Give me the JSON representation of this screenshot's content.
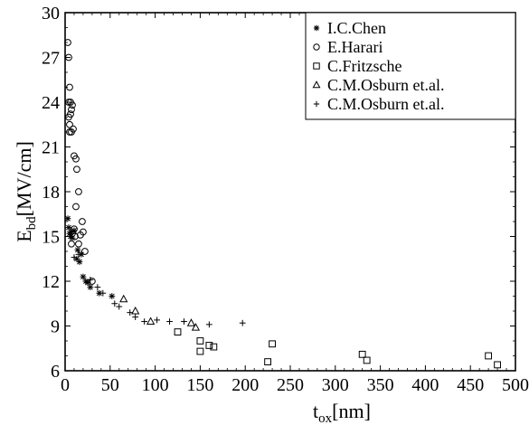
{
  "chart_data": {
    "type": "scatter",
    "title": "",
    "xlabel": {
      "main": "t",
      "sub": "ox",
      "unit": "[nm]"
    },
    "ylabel": {
      "main": "E",
      "sub": "bd",
      "unit": "[MV/cm]"
    },
    "xlim": [
      0,
      500
    ],
    "ylim": [
      6,
      30
    ],
    "xticks": [
      0,
      50,
      100,
      150,
      200,
      250,
      300,
      350,
      400,
      450,
      500
    ],
    "yticks": [
      6,
      9,
      12,
      15,
      18,
      21,
      24,
      27,
      30
    ],
    "grid": false,
    "legend_position": "top-right",
    "series": [
      {
        "name": "I.C.Chen",
        "marker": "asterisk",
        "x": [
          3,
          4,
          5,
          6,
          7,
          8,
          10,
          13,
          14,
          16,
          18,
          20,
          23,
          25,
          28,
          38,
          52
        ],
        "y": [
          16.2,
          15.6,
          15.2,
          15.0,
          15.3,
          14.9,
          15.4,
          13.5,
          14.1,
          13.3,
          13.8,
          12.3,
          12.0,
          11.9,
          11.6,
          11.2,
          11.0
        ]
      },
      {
        "name": "E.Harari",
        "marker": "circle",
        "x": [
          3,
          4,
          5,
          4,
          6,
          7,
          8,
          4,
          5,
          7,
          9,
          10,
          12,
          13,
          15,
          19,
          12,
          10,
          11,
          8,
          7,
          15,
          17,
          20,
          22,
          30,
          6,
          5
        ],
        "y": [
          28.0,
          27.0,
          25.0,
          24.0,
          24.0,
          23.5,
          23.8,
          23.0,
          22.5,
          22.0,
          22.2,
          20.4,
          20.2,
          19.5,
          18.0,
          16.0,
          17.0,
          15.5,
          15.0,
          15.2,
          14.5,
          14.5,
          15.1,
          15.3,
          14.0,
          12.0,
          23.2,
          22.0
        ]
      },
      {
        "name": "C.Fritzsche",
        "marker": "square",
        "x": [
          125,
          150,
          150,
          160,
          165,
          225,
          230,
          330,
          335,
          470,
          480
        ],
        "y": [
          8.6,
          8.0,
          7.3,
          7.7,
          7.6,
          6.6,
          7.8,
          7.1,
          6.7,
          7.0,
          6.4
        ]
      },
      {
        "name": "C.M.Osburn et.al.",
        "marker": "triangle",
        "x": [
          65,
          78,
          95,
          140,
          145
        ],
        "y": [
          10.8,
          10.0,
          9.3,
          9.2,
          8.9
        ]
      },
      {
        "name": "C.M.Osburn et.al.",
        "marker": "plus",
        "x": [
          10,
          15,
          28,
          36,
          42,
          55,
          60,
          72,
          78,
          88,
          102,
          116,
          132,
          160,
          197
        ],
        "y": [
          13.6,
          13.8,
          12.1,
          11.6,
          11.2,
          10.5,
          10.3,
          9.9,
          9.6,
          9.3,
          9.4,
          9.3,
          9.3,
          9.1,
          9.2
        ]
      }
    ]
  }
}
